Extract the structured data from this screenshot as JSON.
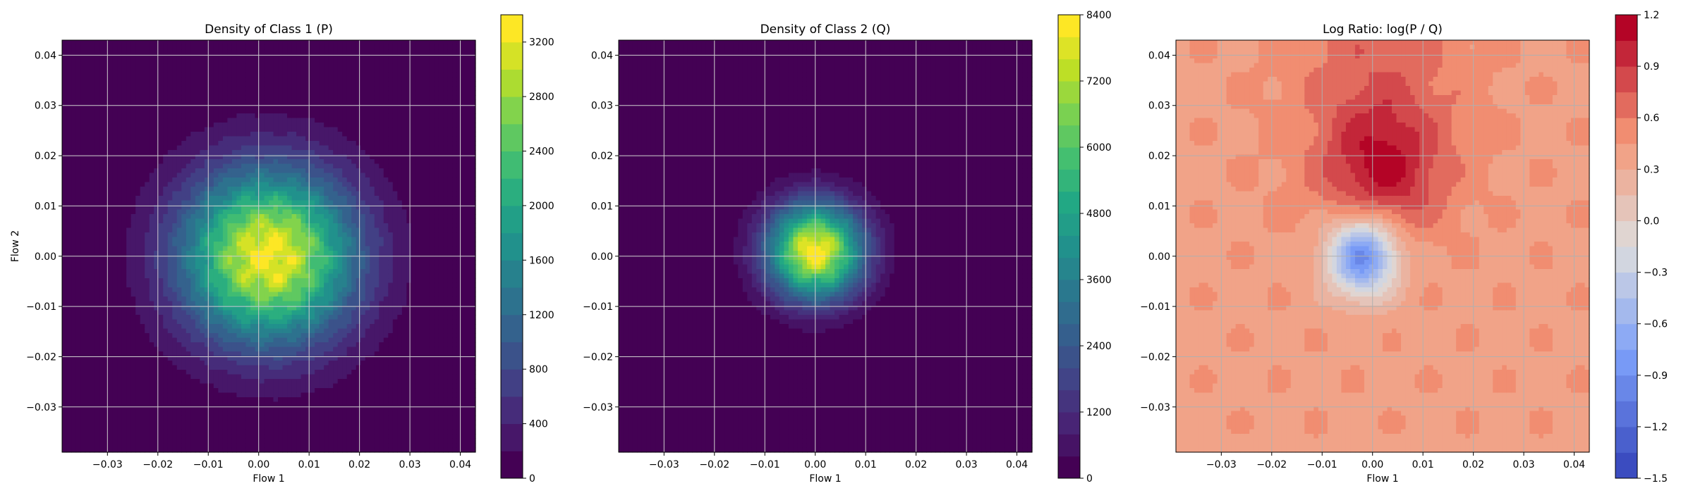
{
  "chart_data": [
    {
      "type": "heatmap",
      "title": "Density of Class 1 (P)",
      "xlabel": "Flow 1",
      "ylabel": "Flow 2",
      "xlim": [
        -0.039,
        0.043
      ],
      "ylim": [
        -0.039,
        0.043
      ],
      "xticks": [
        "−0.03",
        "−0.02",
        "−0.01",
        "0.00",
        "0.01",
        "0.02",
        "0.03",
        "0.04"
      ],
      "yticks": [
        "−0.03",
        "−0.02",
        "−0.01",
        "0.00",
        "0.01",
        "0.02",
        "0.03",
        "0.04"
      ],
      "grid": true,
      "colormap": "viridis",
      "density_peak": 3300,
      "density_center": [
        0.002,
        0.0
      ],
      "density_spread": [
        0.012,
        0.012
      ],
      "colorbar": {
        "min": 0,
        "max": 3400,
        "levels": 17,
        "ticks": [
          0,
          400,
          800,
          1200,
          1600,
          2000,
          2400,
          2800,
          3200
        ],
        "tick_labels": [
          "0",
          "400",
          "800",
          "1200",
          "1600",
          "2000",
          "2400",
          "2800",
          "3200"
        ]
      }
    },
    {
      "type": "heatmap",
      "title": "Density of Class 2 (Q)",
      "xlabel": "Flow 1",
      "ylabel": "",
      "xlim": [
        -0.039,
        0.043
      ],
      "ylim": [
        -0.039,
        0.043
      ],
      "xticks": [
        "−0.03",
        "−0.02",
        "−0.01",
        "0.00",
        "0.01",
        "0.02",
        "0.03",
        "0.04"
      ],
      "yticks": [
        "−0.03",
        "−0.02",
        "−0.01",
        "0.00",
        "0.01",
        "0.02",
        "0.03",
        "0.04"
      ],
      "grid": true,
      "colormap": "viridis",
      "density_peak": 8300,
      "density_center": [
        0.0,
        0.001
      ],
      "density_spread": [
        0.0065,
        0.0065
      ],
      "colorbar": {
        "min": 0,
        "max": 8400,
        "levels": 21,
        "ticks": [
          0,
          1200,
          2400,
          3600,
          4800,
          6000,
          7200,
          8400
        ],
        "tick_labels": [
          "0",
          "1200",
          "2400",
          "3600",
          "4800",
          "6000",
          "7200",
          "8400"
        ]
      }
    },
    {
      "type": "heatmap",
      "title": "Log Ratio: log(P / Q)",
      "xlabel": "Flow 1",
      "ylabel": "",
      "xlim": [
        -0.039,
        0.043
      ],
      "ylim": [
        -0.039,
        0.043
      ],
      "xticks": [
        "−0.03",
        "−0.02",
        "−0.01",
        "0.00",
        "0.01",
        "0.02",
        "0.03",
        "0.04"
      ],
      "yticks": [
        "−0.03",
        "−0.02",
        "−0.01",
        "0.00",
        "0.01",
        "0.02",
        "0.03",
        "0.04"
      ],
      "grid": true,
      "colormap": "coolwarm",
      "ratio_min_center": [
        -0.002,
        0.0
      ],
      "ratio_max_center": [
        0.002,
        0.017
      ],
      "colorbar": {
        "min": -1.5,
        "max": 1.2,
        "levels": 18,
        "ticks": [
          -1.5,
          -1.2,
          -0.9,
          -0.6,
          -0.3,
          0.0,
          0.3,
          0.6,
          0.9,
          1.2
        ],
        "tick_labels": [
          "−1.5",
          "−1.2",
          "−0.9",
          "−0.6",
          "−0.3",
          "0.0",
          "0.3",
          "0.6",
          "0.9",
          "1.2"
        ]
      }
    }
  ]
}
